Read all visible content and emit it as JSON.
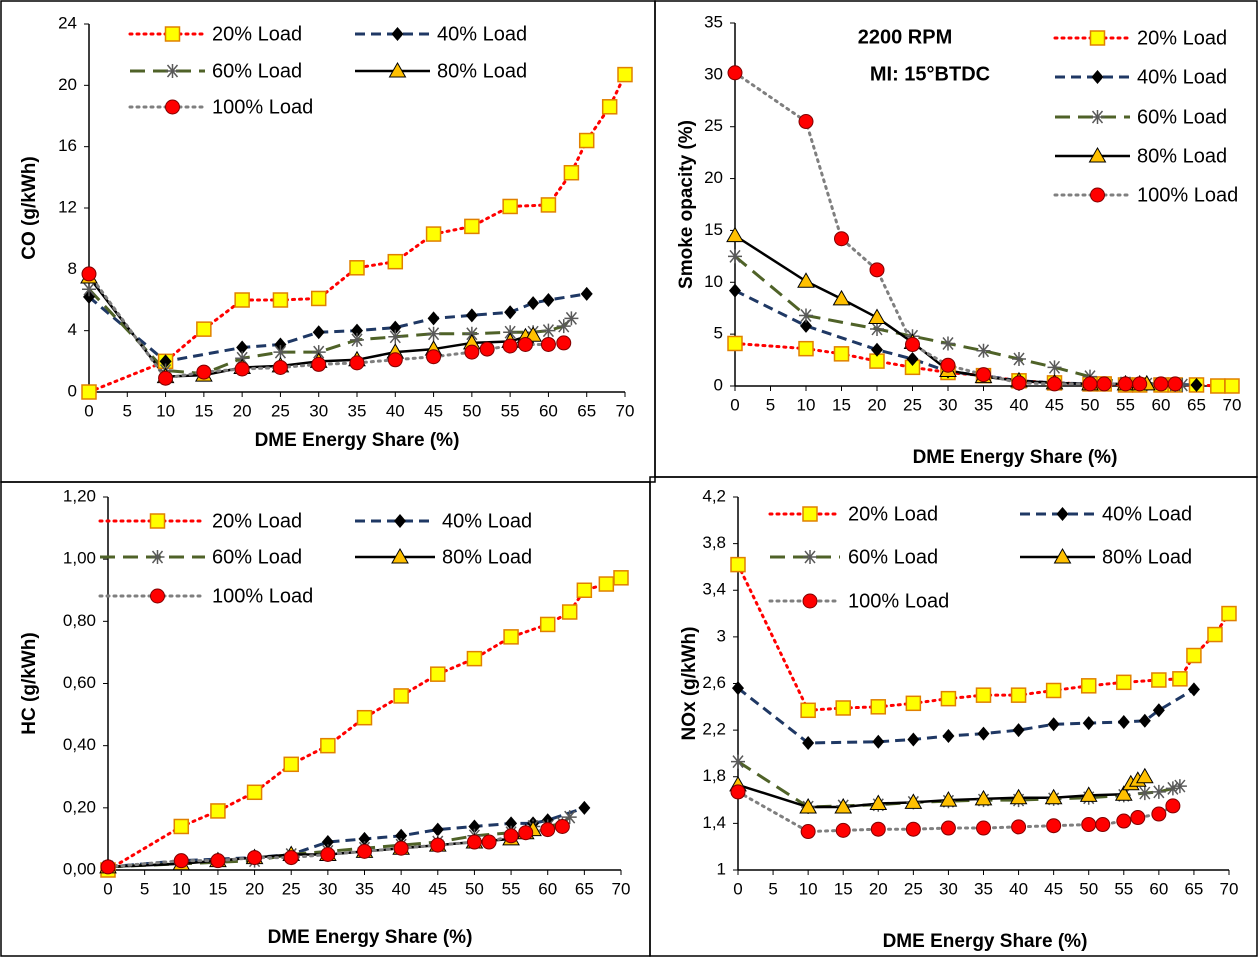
{
  "chart_data": [
    {
      "type": "line",
      "title": "CO (g/kWh)",
      "x_label": "DME Energy Share (%)",
      "xlim": [
        0,
        70
      ],
      "xticks": [
        0,
        5,
        10,
        15,
        20,
        25,
        30,
        35,
        40,
        45,
        50,
        55,
        60,
        65,
        70
      ],
      "ylim": [
        0,
        24
      ],
      "yticks": [
        0,
        4,
        8,
        12,
        16,
        20,
        24
      ],
      "legend_columns": 2,
      "series": [
        {
          "name": "20% Load",
          "color": "#ff0000",
          "dash": "dotted",
          "marker": "square",
          "marker_color": "#ffff00",
          "x": [
            0,
            10,
            15,
            20,
            25,
            30,
            35,
            40,
            45,
            50,
            55,
            60,
            63,
            65,
            68,
            70
          ],
          "values": [
            0,
            2.0,
            4.1,
            6.0,
            6.0,
            6.1,
            8.1,
            8.5,
            10.3,
            10.8,
            12.1,
            12.2,
            14.3,
            16.4,
            18.6,
            20.7
          ]
        },
        {
          "name": "40% Load",
          "color": "#1f3864",
          "dash": "dashed",
          "marker": "diamond",
          "marker_color": "#000000",
          "x": [
            0,
            10,
            20,
            25,
            30,
            35,
            40,
            45,
            50,
            55,
            58,
            60,
            65
          ],
          "values": [
            6.2,
            2.0,
            2.9,
            3.1,
            3.9,
            4.0,
            4.2,
            4.8,
            5.0,
            5.2,
            5.8,
            6.0,
            6.4
          ]
        },
        {
          "name": "60% Load",
          "color": "#4f6228",
          "dash": "long-dash",
          "marker": "asterisk",
          "marker_color": "#595959",
          "x": [
            0,
            10,
            15,
            20,
            25,
            30,
            35,
            40,
            45,
            50,
            55,
            58,
            60,
            62,
            63
          ],
          "values": [
            6.7,
            1.4,
            1.2,
            2.2,
            2.6,
            2.6,
            3.4,
            3.6,
            3.8,
            3.8,
            3.9,
            3.9,
            4.0,
            4.3,
            4.8
          ]
        },
        {
          "name": "80% Load",
          "color": "#000000",
          "dash": "solid",
          "marker": "triangle",
          "marker_color": "#ffc000",
          "x": [
            0,
            10,
            15,
            20,
            25,
            30,
            35,
            40,
            45,
            50,
            55,
            57,
            58
          ],
          "values": [
            7.5,
            1.0,
            1.1,
            1.6,
            1.7,
            2.0,
            2.1,
            2.6,
            2.8,
            3.2,
            3.3,
            3.6,
            3.7
          ]
        },
        {
          "name": "100% Load",
          "color": "#7f7f7f",
          "dash": "dotted",
          "marker": "circle",
          "marker_color": "#ff0000",
          "x": [
            0,
            10,
            15,
            20,
            25,
            30,
            35,
            40,
            45,
            50,
            52,
            55,
            57,
            60,
            62
          ],
          "values": [
            7.7,
            0.9,
            1.3,
            1.5,
            1.6,
            1.8,
            1.9,
            2.1,
            2.3,
            2.6,
            2.8,
            3.0,
            3.1,
            3.1,
            3.2
          ]
        }
      ]
    },
    {
      "type": "line",
      "title": "Smoke opacity (%)",
      "x_label": "DME Energy Share (%)",
      "annotations": [
        "2200 RPM",
        "MI: 15°BTDC"
      ],
      "xlim": [
        0,
        70
      ],
      "xticks": [
        0,
        5,
        10,
        15,
        20,
        25,
        30,
        35,
        40,
        45,
        50,
        55,
        60,
        65,
        70
      ],
      "ylim": [
        0,
        35
      ],
      "yticks": [
        0,
        5,
        10,
        15,
        20,
        25,
        30,
        35
      ],
      "legend_columns": 1,
      "series": [
        {
          "name": "20% Load",
          "color": "#ff0000",
          "dash": "dotted",
          "marker": "square",
          "marker_color": "#ffff00",
          "x": [
            0,
            10,
            15,
            20,
            25,
            30,
            35,
            40,
            45,
            50,
            52,
            55,
            57,
            60,
            62,
            65,
            68,
            70
          ],
          "values": [
            4.1,
            3.6,
            3.1,
            2.4,
            1.8,
            1.3,
            1.0,
            0.5,
            0.3,
            0.2,
            0.2,
            0.1,
            0.1,
            0.1,
            0.1,
            0.1,
            0,
            0
          ]
        },
        {
          "name": "40% Load",
          "color": "#1f3864",
          "dash": "dashed",
          "marker": "diamond",
          "marker_color": "#000000",
          "x": [
            0,
            10,
            20,
            25,
            30,
            35,
            40,
            45,
            50,
            55,
            58,
            60,
            65
          ],
          "values": [
            9.2,
            5.8,
            3.5,
            2.6,
            1.4,
            1.0,
            0.5,
            0.3,
            0.2,
            0.2,
            0.2,
            0.2,
            0.1
          ]
        },
        {
          "name": "60% Load",
          "color": "#4f6228",
          "dash": "long-dash",
          "marker": "asterisk",
          "marker_color": "#595959",
          "x": [
            0,
            10,
            20,
            25,
            30,
            35,
            40,
            45,
            50,
            55,
            58,
            60,
            62,
            63
          ],
          "values": [
            12.5,
            6.8,
            5.5,
            4.8,
            4.1,
            3.4,
            2.6,
            1.8,
            0.9,
            0.3,
            0.2,
            0.2,
            0.1,
            0.1
          ]
        },
        {
          "name": "80% Load",
          "color": "#000000",
          "dash": "solid",
          "marker": "triangle",
          "marker_color": "#ffc000",
          "x": [
            0,
            10,
            15,
            20,
            25,
            30,
            35,
            40,
            45,
            50,
            55,
            57,
            58
          ],
          "values": [
            14.5,
            10.1,
            8.4,
            6.6,
            4.2,
            1.5,
            0.9,
            0.5,
            0.3,
            0.2,
            0.2,
            0.2,
            0.2
          ]
        },
        {
          "name": "100% Load",
          "color": "#7f7f7f",
          "dash": "dotted",
          "marker": "circle",
          "marker_color": "#ff0000",
          "x": [
            0,
            10,
            15,
            20,
            25,
            30,
            35,
            40,
            45,
            50,
            52,
            55,
            57,
            60,
            62
          ],
          "values": [
            30.2,
            25.5,
            14.2,
            11.2,
            4.0,
            2.0,
            1.1,
            0.3,
            0.2,
            0.2,
            0.2,
            0.2,
            0.2,
            0.2,
            0.2
          ]
        }
      ]
    },
    {
      "type": "line",
      "title": "HC (g/kWh)",
      "x_label": "DME Energy Share (%)",
      "xlim": [
        0,
        70
      ],
      "xticks": [
        0,
        5,
        10,
        15,
        20,
        25,
        30,
        35,
        40,
        45,
        50,
        55,
        60,
        65,
        70
      ],
      "ylim": [
        0,
        1.2
      ],
      "yticks": [
        {
          "value": 0,
          "label": "0,00"
        },
        {
          "value": 0.2,
          "label": "0,20"
        },
        {
          "value": 0.4,
          "label": "0,40"
        },
        {
          "value": 0.6,
          "label": "0,60"
        },
        {
          "value": 0.8,
          "label": "0,80"
        },
        {
          "value": 1.0,
          "label": "1,00"
        },
        {
          "value": 1.2,
          "label": "1,20"
        }
      ],
      "legend_columns": 2,
      "series": [
        {
          "name": "20% Load",
          "color": "#ff0000",
          "dash": "dotted",
          "marker": "square",
          "marker_color": "#ffff00",
          "x": [
            0,
            10,
            15,
            20,
            25,
            30,
            35,
            40,
            45,
            50,
            55,
            60,
            63,
            65,
            68,
            70
          ],
          "values": [
            0.0,
            0.14,
            0.19,
            0.25,
            0.34,
            0.4,
            0.49,
            0.56,
            0.63,
            0.68,
            0.75,
            0.79,
            0.83,
            0.9,
            0.92,
            0.94
          ]
        },
        {
          "name": "40% Load",
          "color": "#1f3864",
          "dash": "dashed",
          "marker": "diamond",
          "marker_color": "#000000",
          "x": [
            0,
            10,
            20,
            25,
            30,
            35,
            40,
            45,
            50,
            55,
            58,
            60,
            65
          ],
          "values": [
            0.01,
            0.03,
            0.04,
            0.05,
            0.09,
            0.1,
            0.11,
            0.13,
            0.14,
            0.15,
            0.15,
            0.16,
            0.2
          ]
        },
        {
          "name": "60% Load",
          "color": "#4f6228",
          "dash": "long-dash",
          "marker": "asterisk",
          "marker_color": "#595959",
          "x": [
            0,
            10,
            20,
            25,
            30,
            35,
            40,
            45,
            50,
            55,
            58,
            60,
            62,
            63
          ],
          "values": [
            0.01,
            0.02,
            0.03,
            0.05,
            0.06,
            0.07,
            0.08,
            0.09,
            0.11,
            0.12,
            0.14,
            0.14,
            0.15,
            0.17
          ]
        },
        {
          "name": "80% Load",
          "color": "#000000",
          "dash": "solid",
          "marker": "triangle",
          "marker_color": "#ffc000",
          "x": [
            0,
            10,
            15,
            20,
            25,
            30,
            35,
            40,
            45,
            50,
            55,
            57,
            58
          ],
          "values": [
            0.01,
            0.02,
            0.03,
            0.04,
            0.05,
            0.05,
            0.06,
            0.07,
            0.08,
            0.09,
            0.1,
            0.12,
            0.13
          ]
        },
        {
          "name": "100% Load",
          "color": "#7f7f7f",
          "dash": "dotted",
          "marker": "circle",
          "marker_color": "#ff0000",
          "x": [
            0,
            10,
            15,
            20,
            25,
            30,
            35,
            40,
            45,
            50,
            52,
            55,
            57,
            60,
            62
          ],
          "values": [
            0.01,
            0.03,
            0.03,
            0.04,
            0.04,
            0.05,
            0.06,
            0.07,
            0.08,
            0.09,
            0.09,
            0.11,
            0.12,
            0.13,
            0.14
          ]
        }
      ]
    },
    {
      "type": "line",
      "title": "NOx (g/kWh)",
      "x_label": "DME Energy Share (%)",
      "xlim": [
        0,
        70
      ],
      "xticks": [
        0,
        5,
        10,
        15,
        20,
        25,
        30,
        35,
        40,
        45,
        50,
        55,
        60,
        65,
        70
      ],
      "ylim": [
        1,
        4.2
      ],
      "yticks": [
        1,
        {
          "value": 1.4,
          "label": "1,4"
        },
        {
          "value": 1.8,
          "label": "1,8"
        },
        {
          "value": 2.2,
          "label": "2,2"
        },
        {
          "value": 2.6,
          "label": "2,6"
        },
        3,
        {
          "value": 3.4,
          "label": "3,4"
        },
        {
          "value": 3.8,
          "label": "3,8"
        },
        {
          "value": 4.2,
          "label": "4,2"
        }
      ],
      "legend_columns": 2,
      "series": [
        {
          "name": "20% Load",
          "color": "#ff0000",
          "dash": "dotted",
          "marker": "square",
          "marker_color": "#ffff00",
          "x": [
            0,
            10,
            15,
            20,
            25,
            30,
            35,
            40,
            45,
            50,
            55,
            60,
            63,
            65,
            68,
            70
          ],
          "values": [
            3.62,
            2.37,
            2.39,
            2.4,
            2.43,
            2.47,
            2.5,
            2.5,
            2.54,
            2.58,
            2.61,
            2.63,
            2.64,
            2.84,
            3.02,
            3.2
          ]
        },
        {
          "name": "40% Load",
          "color": "#1f3864",
          "dash": "dashed",
          "marker": "diamond",
          "marker_color": "#000000",
          "x": [
            0,
            10,
            20,
            25,
            30,
            35,
            40,
            45,
            50,
            55,
            58,
            60,
            65
          ],
          "values": [
            2.56,
            2.09,
            2.1,
            2.12,
            2.15,
            2.17,
            2.2,
            2.25,
            2.26,
            2.27,
            2.28,
            2.37,
            2.55
          ]
        },
        {
          "name": "60% Load",
          "color": "#4f6228",
          "dash": "long-dash",
          "marker": "asterisk",
          "marker_color": "#595959",
          "x": [
            0,
            10,
            15,
            20,
            25,
            30,
            35,
            40,
            45,
            50,
            55,
            58,
            60,
            62,
            63
          ],
          "values": [
            1.93,
            1.54,
            1.55,
            1.56,
            1.58,
            1.59,
            1.6,
            1.6,
            1.61,
            1.62,
            1.64,
            1.66,
            1.67,
            1.7,
            1.72
          ]
        },
        {
          "name": "80% Load",
          "color": "#000000",
          "dash": "solid",
          "marker": "triangle",
          "marker_color": "#ffc000",
          "x": [
            0,
            10,
            15,
            20,
            25,
            30,
            35,
            40,
            45,
            50,
            55,
            56,
            57,
            58
          ],
          "values": [
            1.73,
            1.54,
            1.54,
            1.57,
            1.58,
            1.6,
            1.61,
            1.62,
            1.62,
            1.64,
            1.65,
            1.74,
            1.77,
            1.8
          ]
        },
        {
          "name": "100% Load",
          "color": "#7f7f7f",
          "dash": "dotted",
          "marker": "circle",
          "marker_color": "#ff0000",
          "x": [
            0,
            10,
            15,
            20,
            25,
            30,
            35,
            40,
            45,
            50,
            52,
            55,
            57,
            60,
            62
          ],
          "values": [
            1.67,
            1.33,
            1.34,
            1.35,
            1.35,
            1.36,
            1.36,
            1.37,
            1.38,
            1.39,
            1.39,
            1.42,
            1.45,
            1.48,
            1.55
          ]
        }
      ]
    }
  ]
}
